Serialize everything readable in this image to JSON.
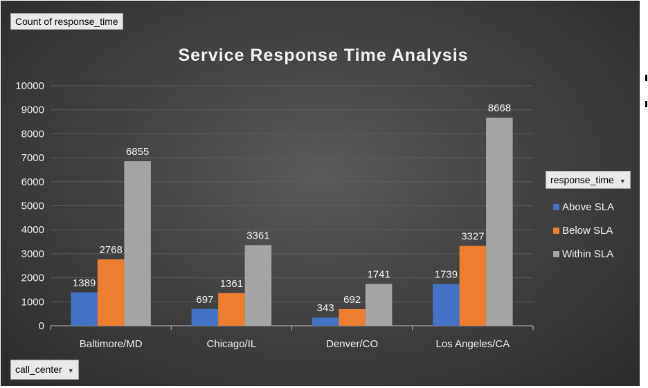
{
  "field_buttons": {
    "values_field": "Count of response_time",
    "axis_field": "call_center",
    "legend_field": "response_time",
    "dropdown_glyph": "▼"
  },
  "colors": {
    "above_sla": "#4472c4",
    "below_sla": "#ed7d31",
    "within_sla": "#a5a5a5",
    "text": "#f2f2f2",
    "gridline": "#5e5e5e"
  },
  "chart_data": {
    "type": "bar",
    "title": "Service Response Time Analysis",
    "xlabel": "",
    "ylabel": "",
    "categories": [
      "Baltimore/MD",
      "Chicago/IL",
      "Denver/CO",
      "Los Angeles/CA"
    ],
    "series": [
      {
        "name": "Above SLA",
        "values": [
          1389,
          697,
          343,
          1739
        ],
        "color": "#4472c4"
      },
      {
        "name": "Below SLA",
        "values": [
          2768,
          1361,
          692,
          3327
        ],
        "color": "#ed7d31"
      },
      {
        "name": "Within SLA",
        "values": [
          6855,
          3361,
          1741,
          8668
        ],
        "color": "#a5a5a5"
      }
    ],
    "ylim": [
      0,
      10000
    ],
    "yticks": [
      0,
      1000,
      2000,
      3000,
      4000,
      5000,
      6000,
      7000,
      8000,
      9000,
      10000
    ],
    "grid": true,
    "legend_position": "right",
    "data_labels": true
  }
}
